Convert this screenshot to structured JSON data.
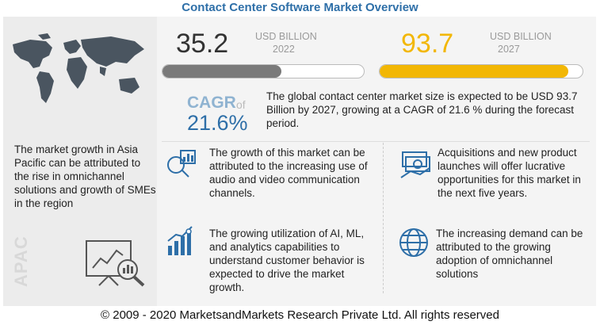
{
  "title": "Contact Center Software Market Overview",
  "stat_2022": {
    "value": "35.2",
    "unit": "USD BILLION",
    "year": "2022"
  },
  "stat_2027": {
    "value": "93.7",
    "unit": "USD BILLION",
    "year": "2027"
  },
  "cagr": {
    "label": "CAGR",
    "of": "of",
    "value": "21.6%"
  },
  "summary": "The global contact center market size is expected to be USD 93.7 Billion by 2027, growing at a CAGR of 21.6 % during the forecast period.",
  "region": {
    "label": "APAC",
    "text": "The market growth in Asia Pacific can be attributed to the rise in omnichannel solutions and growth of SMEs in the region"
  },
  "facts": [
    "The growth of this market can be attributed to the increasing use of audio and video communication channels.",
    "Acquisitions and new product launches will offer lucrative opportunities for this market in the next five years.",
    "The growing utilization of AI, ML, and analytics capabilities to understand customer behavior  is expected to drive the market growth.",
    "The increasing demand can be attributed to the growing adoption of omnichannel solutions"
  ],
  "icons": [
    "world-map",
    "analytics-board-icon",
    "chart-magnifier-icon",
    "money-icon",
    "growth-chart-icon",
    "globe-icon"
  ],
  "colors": {
    "title": "#2e6fa8",
    "bar_2022": "#7a7a7a",
    "bar_2027": "#f2b705",
    "cagr": "#2e6fa8"
  },
  "chart_data": {
    "type": "bar",
    "categories": [
      "2022",
      "2027"
    ],
    "values": [
      35.2,
      93.7
    ],
    "unit": "USD BILLION",
    "cagr_percent": 21.6
  },
  "footer": "© 2009 - 2020 MarketsandMarkets Research Private Ltd. All rights reserved"
}
